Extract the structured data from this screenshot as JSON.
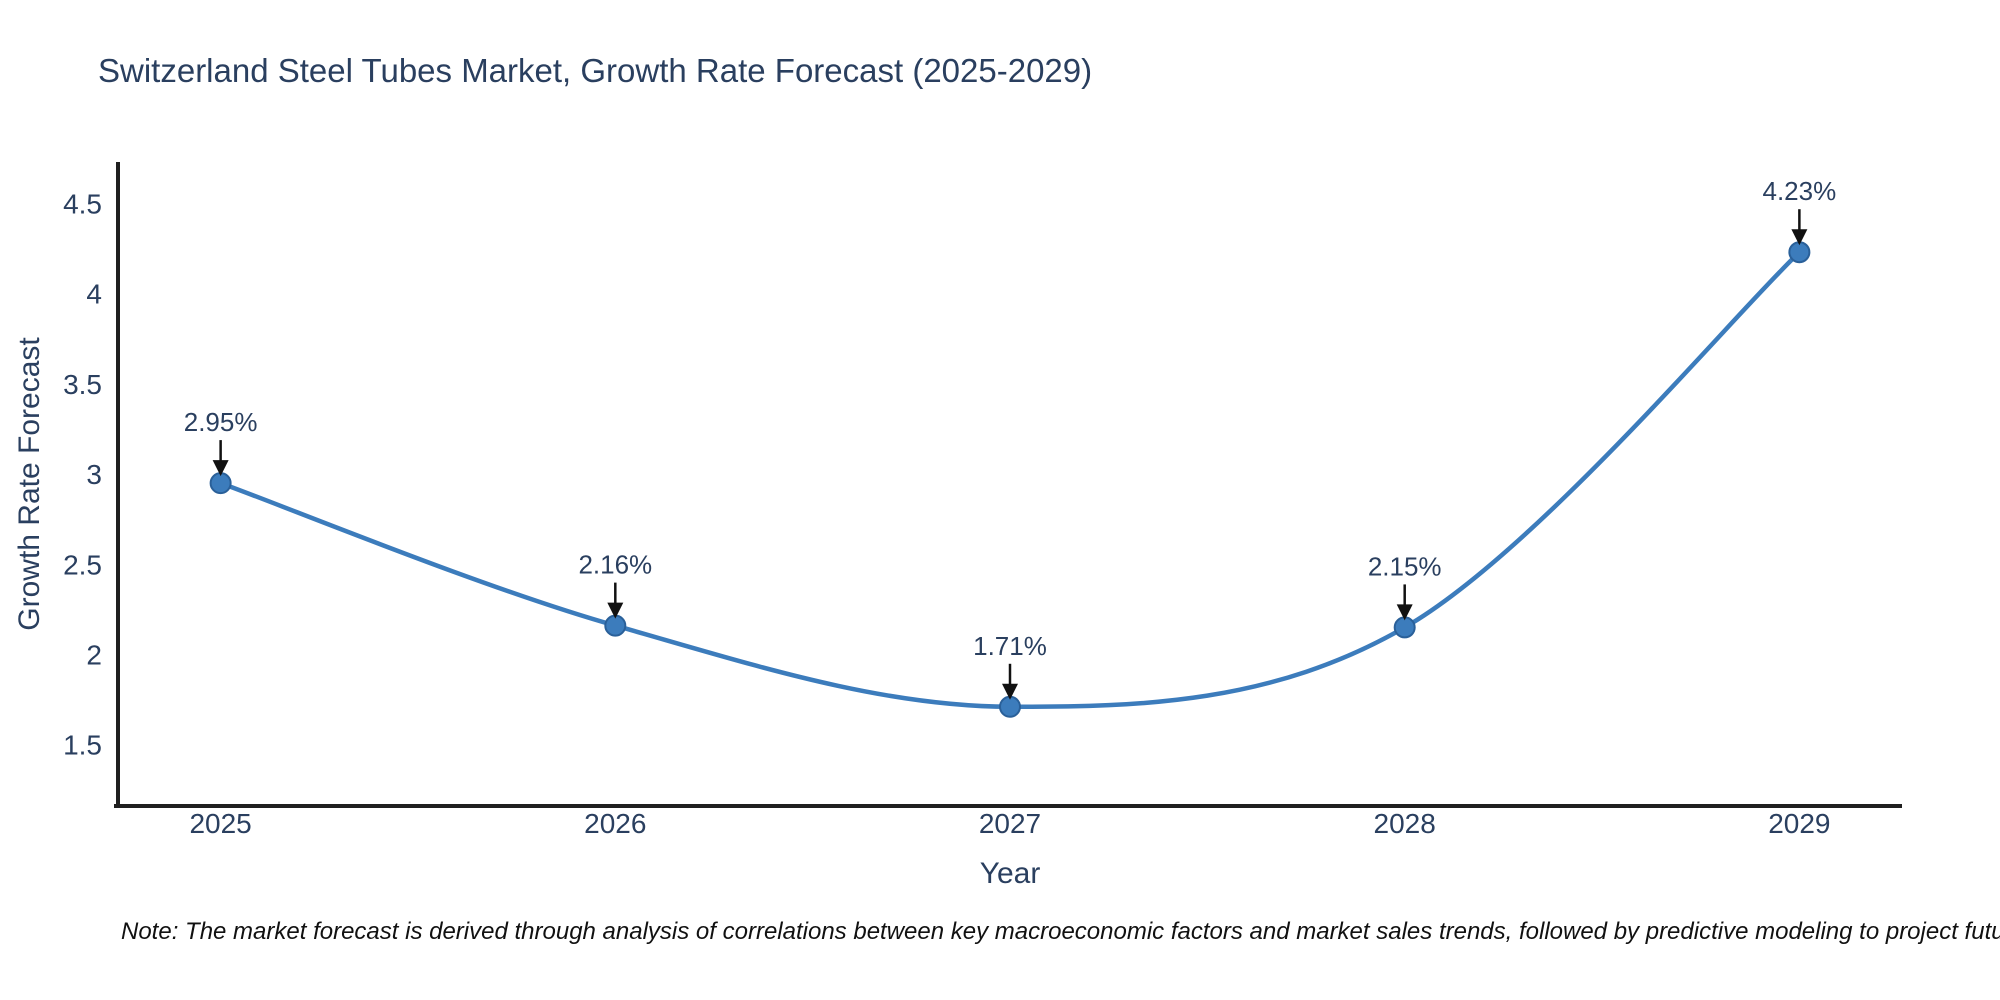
{
  "title": "Switzerland Steel Tubes Market, Growth Rate Forecast (2025-2029)",
  "note": "Note: The market forecast is derived through analysis of correlations between key macroeconomic factors and market sales trends, followed by predictive modeling to project future sales",
  "colors": {
    "text": "#2a3f5f",
    "axis_line": "#1f1f1f",
    "series_line": "#3c7cbc",
    "marker_fill": "#3c7cbc",
    "marker_edge": "#2a6099",
    "arrow": "#111111",
    "background": "#ffffff"
  },
  "chart_data": {
    "type": "line",
    "title": "Switzerland Steel Tubes Market, Growth Rate Forecast (2025-2029)",
    "xlabel": "Year",
    "ylabel": "Growth Rate Forecast",
    "x": [
      2025,
      2026,
      2027,
      2028,
      2029
    ],
    "y": [
      2.95,
      2.16,
      1.71,
      2.15,
      4.23
    ],
    "series": [
      {
        "name": "Growth Rate Forecast",
        "values": [
          2.95,
          2.16,
          1.71,
          2.15,
          4.23
        ]
      }
    ],
    "point_labels": [
      "2.95%",
      "2.16%",
      "1.71%",
      "2.15%",
      "4.23%"
    ],
    "x_tick_labels": [
      "2025",
      "2026",
      "2027",
      "2028",
      "2029"
    ],
    "y_tick_values": [
      1.5,
      2,
      2.5,
      3,
      3.5,
      4,
      4.5
    ],
    "y_tick_labels": [
      "1.5",
      "2",
      "2.5",
      "3",
      "3.5",
      "4",
      "4.5"
    ],
    "x_range": [
      2024.74,
      2029.26
    ],
    "y_range": [
      1.16,
      4.73
    ],
    "line_shape": "spline",
    "grid": false,
    "legend": false,
    "annotation_style": "percent labels above each point with black down-arrows"
  }
}
